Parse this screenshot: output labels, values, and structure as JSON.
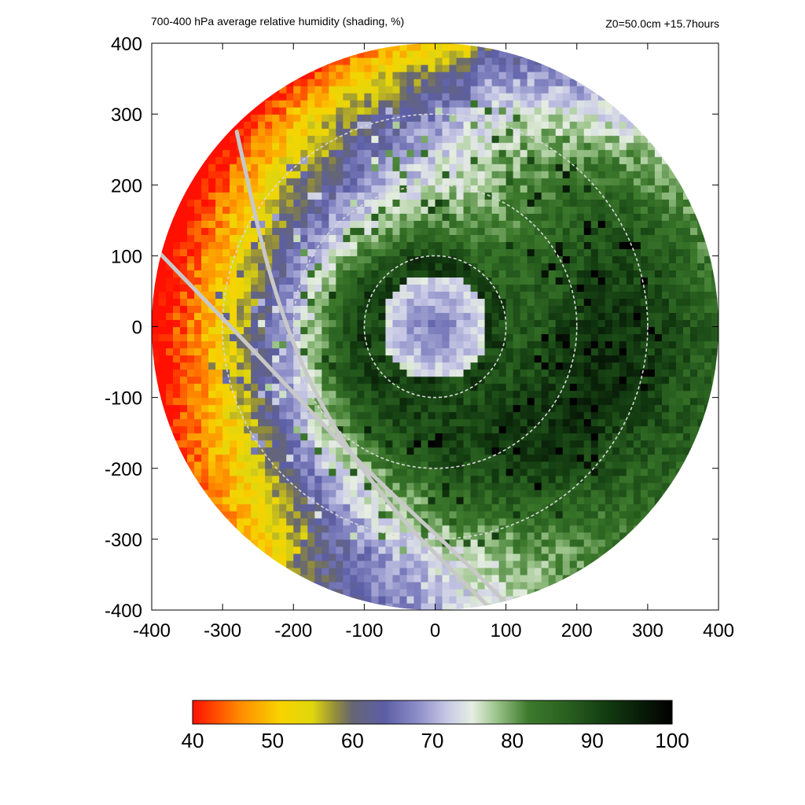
{
  "chart_data": {
    "type": "heatmap",
    "title": "700-400 hPa average relative humidity (shading, %)",
    "info": "Z0=50.0cm  +15.7hours",
    "xlim": [
      -400,
      400
    ],
    "ylim": [
      -400,
      400
    ],
    "x_ticks": [
      -400,
      -300,
      -200,
      -100,
      0,
      100,
      200,
      300,
      400
    ],
    "y_ticks": [
      -400,
      -300,
      -200,
      -100,
      0,
      100,
      200,
      300,
      400
    ],
    "domain_radius": 400,
    "range_rings": [
      100,
      200,
      300
    ],
    "colorbar": {
      "min": 40,
      "max": 100,
      "ticks": [
        40,
        50,
        60,
        70,
        80,
        90,
        100
      ],
      "stops": [
        {
          "v": 40,
          "color": "#ff1000"
        },
        {
          "v": 46,
          "color": "#ff8c00"
        },
        {
          "v": 51,
          "color": "#f7d400"
        },
        {
          "v": 55,
          "color": "#e0d60e"
        },
        {
          "v": 58,
          "color": "#8f8a3e"
        },
        {
          "v": 60,
          "color": "#656674"
        },
        {
          "v": 64,
          "color": "#5c5ea6"
        },
        {
          "v": 68,
          "color": "#8a8cc6"
        },
        {
          "v": 72,
          "color": "#c9cae6"
        },
        {
          "v": 75,
          "color": "#e6eee2"
        },
        {
          "v": 78,
          "color": "#9cc48b"
        },
        {
          "v": 82,
          "color": "#3d7a2c"
        },
        {
          "v": 87,
          "color": "#285f1f"
        },
        {
          "v": 92,
          "color": "#123a10"
        },
        {
          "v": 100,
          "color": "#000000"
        }
      ]
    },
    "field": {
      "eye_center": [
        0,
        0
      ],
      "eye_radius": 75,
      "eyewall_radius": 90,
      "eyewall_value": 91,
      "eye_value": 66,
      "dry_direction": "west-northwest",
      "moist_direction": "east-southeast"
    },
    "tracks": [
      {
        "points": [
          [
            -390,
            105
          ],
          [
            -250,
            -40
          ],
          [
            -100,
            -200
          ],
          [
            30,
            -320
          ],
          [
            110,
            -400
          ]
        ]
      },
      {
        "points": [
          [
            -280,
            275
          ],
          [
            -230,
            50
          ],
          [
            -160,
            -120
          ],
          [
            -60,
            -260
          ],
          [
            40,
            -360
          ],
          [
            80,
            -400
          ]
        ]
      }
    ]
  }
}
